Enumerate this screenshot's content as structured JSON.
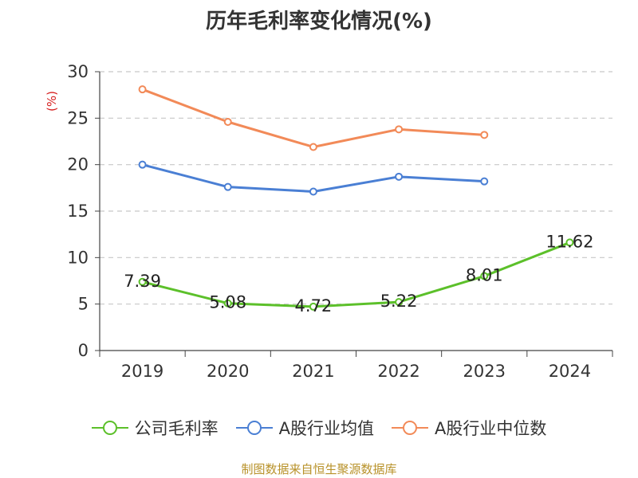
{
  "title": "历年毛利率变化情况(%)",
  "source": "制图数据来自恒生聚源数据库",
  "chart_data": {
    "type": "line",
    "title": "历年毛利率变化情况(%)",
    "ylabel": "(%)",
    "categories": [
      "2019",
      "2020",
      "2021",
      "2022",
      "2023",
      "2024"
    ],
    "ylim": [
      0,
      30
    ],
    "yticks": [
      "0",
      "5",
      "10",
      "15",
      "20",
      "25",
      "30"
    ],
    "grid": true,
    "legend_position": "bottom",
    "series": [
      {
        "name": "公司毛利率",
        "color": "#5cc02a",
        "values": [
          7.39,
          5.08,
          4.72,
          5.22,
          8.01,
          11.62
        ],
        "labels": [
          "7.39",
          "5.08",
          "4.72",
          "5.22",
          "8.01",
          "11.62"
        ]
      },
      {
        "name": "A股行业均值",
        "color": "#4a7fd4",
        "values": [
          20.0,
          17.6,
          17.1,
          18.7,
          18.2,
          null
        ]
      },
      {
        "name": "A股行业中位数",
        "color": "#f28a58",
        "values": [
          28.1,
          24.6,
          21.9,
          23.8,
          23.2,
          null
        ]
      }
    ]
  }
}
